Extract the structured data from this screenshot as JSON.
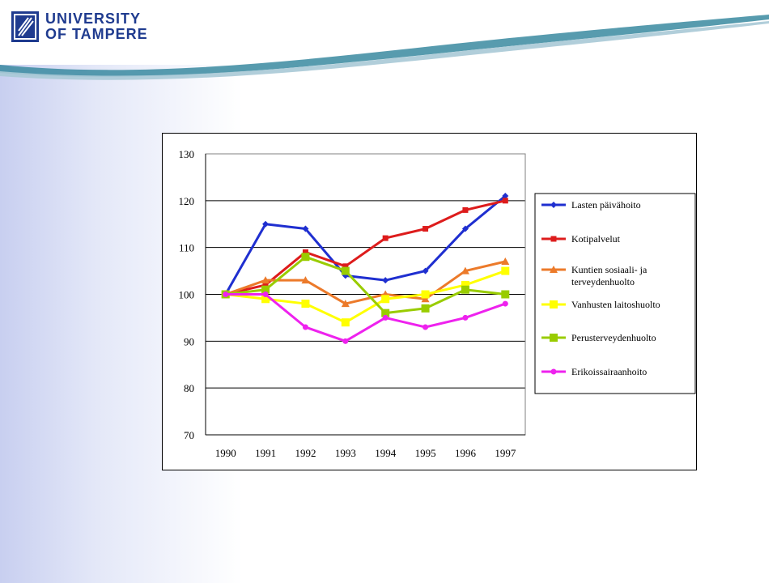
{
  "header": {
    "logo_line1": "UNIVERSITY",
    "logo_line2": "OF TAMPERE",
    "logo_icon": "university-seal-icon"
  },
  "colors": {
    "logo_blue": "#1f3b8f",
    "banner_teal": "#3a8aa0"
  },
  "chart_data": {
    "type": "line",
    "categories": [
      "1990",
      "1991",
      "1992",
      "1993",
      "1994",
      "1995",
      "1996",
      "1997"
    ],
    "ylim": [
      70,
      130
    ],
    "yticks": [
      70,
      80,
      90,
      100,
      110,
      120,
      130
    ],
    "grid": true,
    "legend_position": "right",
    "title": "",
    "xlabel": "",
    "ylabel": "",
    "series": [
      {
        "name": "Lasten päivähoito",
        "color": "#1f2fd0",
        "marker": "diamond",
        "values": [
          100,
          115,
          114,
          104,
          103,
          105,
          114,
          121
        ]
      },
      {
        "name": "Kotipalvelut",
        "color": "#dd1c1c",
        "marker": "square",
        "values": [
          100,
          102,
          109,
          106,
          112,
          114,
          118,
          120
        ]
      },
      {
        "name": "Kuntien sosiaali- ja terveydenhuolto",
        "legend_lines": [
          "Kuntien sosiaali- ja",
          "terveydenhuolto"
        ],
        "color": "#ec7a2a",
        "marker": "triangle",
        "values": [
          100,
          103,
          103,
          98,
          100,
          99,
          105,
          107
        ]
      },
      {
        "name": "Vanhusten laitoshuolto",
        "color": "#ffff00",
        "marker": "square",
        "values": [
          100,
          99,
          98,
          94,
          99,
          100,
          102,
          105
        ]
      },
      {
        "name": "Perusterveydenhuolto",
        "color": "#99cc00",
        "marker": "square",
        "values": [
          100,
          101,
          108,
          105,
          96,
          97,
          101,
          100
        ]
      },
      {
        "name": "Erikoissairaanhoito",
        "color": "#ee22ee",
        "marker": "circle",
        "values": [
          100,
          100,
          93,
          90,
          95,
          93,
          95,
          98
        ]
      }
    ]
  }
}
